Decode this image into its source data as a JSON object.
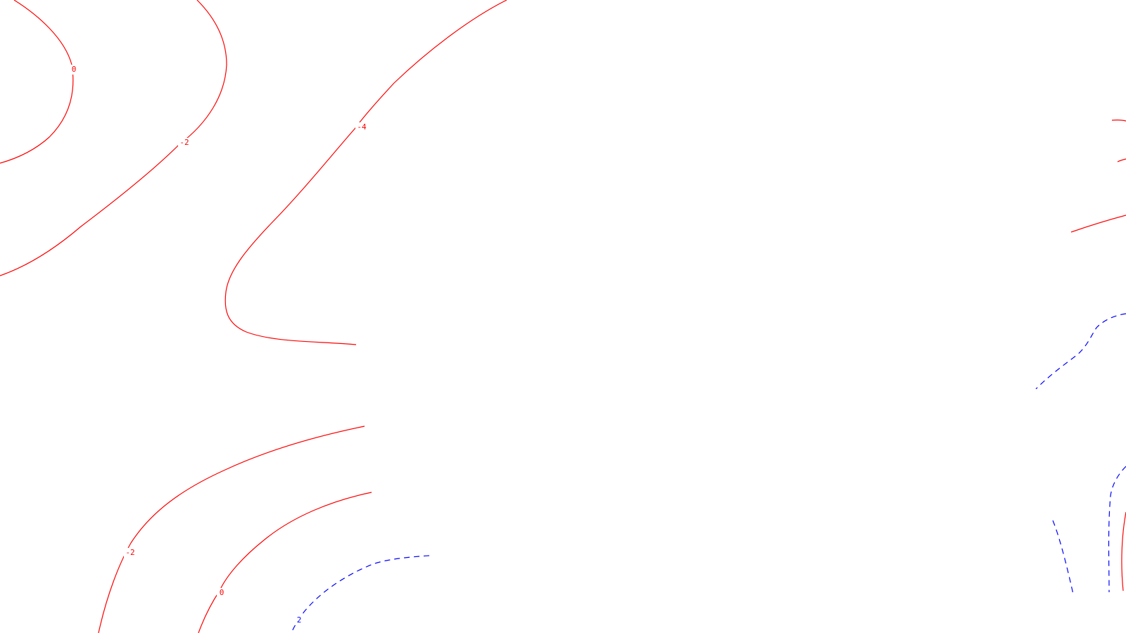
{
  "map": {
    "colors": {
      "negative_and_zero": "#ff0000",
      "positive": "#0000ff",
      "background": "#ffffff"
    },
    "contour_labels": [
      {
        "id": "label-0-top-left",
        "text": "0",
        "level": 0
      },
      {
        "id": "label-neg2-top-left",
        "text": "-2",
        "level": -2
      },
      {
        "id": "label-neg4-top-center",
        "text": "-4",
        "level": -4
      },
      {
        "id": "label-neg2-bottom-left",
        "text": "-2",
        "level": -2
      },
      {
        "id": "label-0-bottom-left",
        "text": "0",
        "level": 0
      },
      {
        "id": "label-2-bottom-center",
        "text": "2",
        "level": 2
      }
    ]
  }
}
